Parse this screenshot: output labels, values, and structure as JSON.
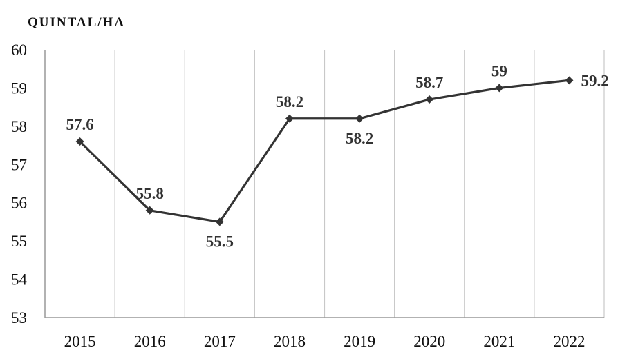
{
  "chart_data": {
    "type": "line",
    "ylabel": "QUINTAL/HA",
    "xlabel": "",
    "categories": [
      "2015",
      "2016",
      "2017",
      "2018",
      "2019",
      "2020",
      "2021",
      "2022"
    ],
    "series": [
      {
        "values": [
          57.6,
          55.8,
          55.5,
          58.2,
          58.2,
          58.7,
          59,
          59.2
        ]
      }
    ],
    "data_labels": [
      "57.6",
      "55.8",
      "55.5",
      "58.2",
      "58.2",
      "58.7",
      "59",
      "59.2"
    ],
    "data_label_positions": [
      "above",
      "above",
      "below",
      "above",
      "below",
      "above",
      "above",
      "right"
    ],
    "ylim": [
      53,
      60
    ],
    "yticks": [
      "53",
      "54",
      "55",
      "56",
      "57",
      "58",
      "59",
      "60"
    ],
    "grid": "vertical",
    "line_color": "#333333",
    "grid_color": "#c8c8c8",
    "axis_color": "#999999",
    "marker": "diamond"
  }
}
